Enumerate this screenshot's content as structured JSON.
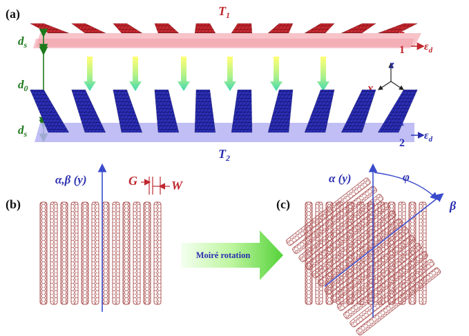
{
  "panels": {
    "a": "(a)",
    "b": "(b)",
    "c": "(c)"
  },
  "panel_a": {
    "top_sheet": "T",
    "top_sheet_sub": "1",
    "bottom_sheet": "T",
    "bottom_sheet_sub": "2",
    "ds_label": "d",
    "ds_sub": "s",
    "d0_label": "d",
    "d0_sub": "0",
    "layer_top_1": "1",
    "layer_top_2": "2",
    "layer_bottom_1": "1",
    "layer_bottom_2": "2",
    "epsilon": "ε",
    "epsilon_sub": "d",
    "axis_x": "x",
    "axis_y": "y",
    "axis_z": "z"
  },
  "panel_b": {
    "axis_label": "α,β (y)",
    "gap_label": "G",
    "width_label": "W"
  },
  "arrow": {
    "label": "Moiré rotation"
  },
  "panel_c": {
    "alpha_label": "α (y)",
    "beta_label": "β",
    "phi_label": "φ"
  },
  "colors": {
    "red": "#c0282e",
    "pink": "#f3a5ad",
    "blue": "#2b2fb0",
    "lavender": "#a8a6ee",
    "green": "#1d7a1d",
    "mesh": "#a84a4a",
    "axis": "#3a4ccc"
  }
}
